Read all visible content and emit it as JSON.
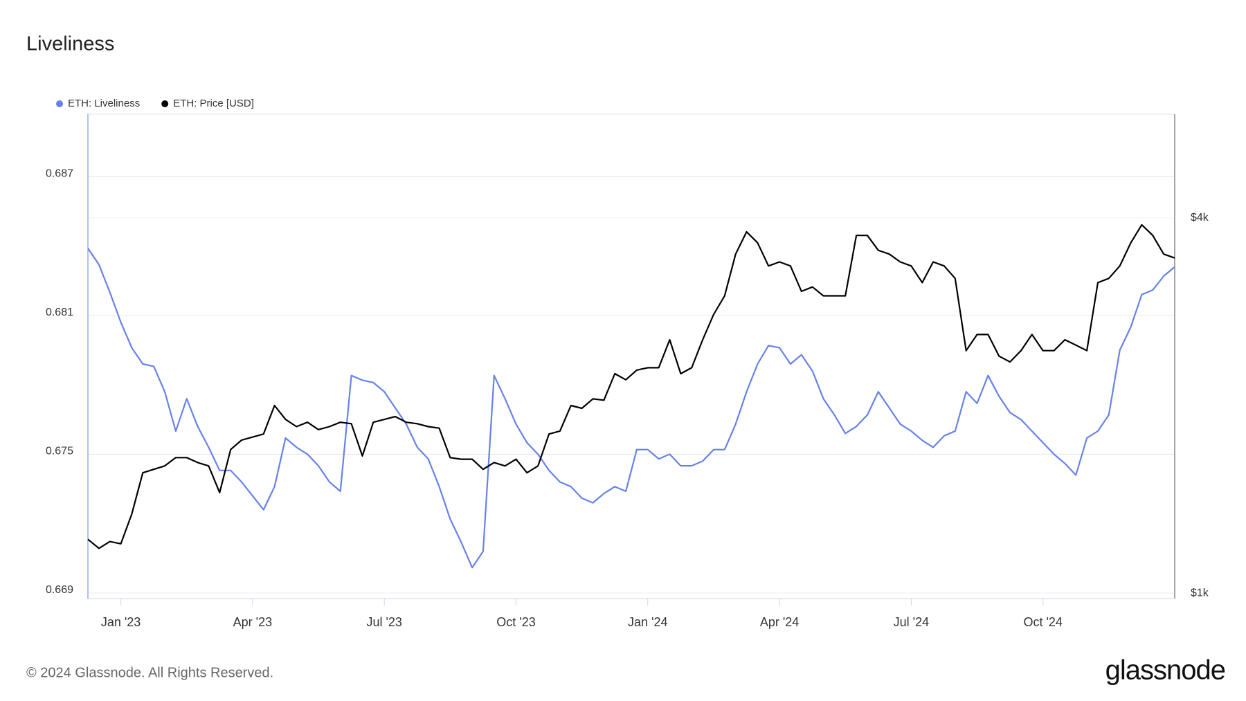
{
  "chart_data": {
    "type": "line",
    "title": "Liveliness",
    "x": [
      -0.75,
      -0.5,
      -0.25,
      0,
      0.25,
      0.5,
      0.75,
      1,
      1.25,
      1.5,
      1.75,
      2,
      2.25,
      2.5,
      2.75,
      3,
      3.25,
      3.5,
      3.75,
      4,
      4.25,
      4.5,
      4.75,
      5,
      5.25,
      5.5,
      5.75,
      6,
      6.25,
      6.5,
      6.75,
      7,
      7.25,
      7.5,
      7.75,
      8,
      8.25,
      8.5,
      8.75,
      9,
      9.25,
      9.5,
      9.75,
      10,
      10.25,
      10.5,
      10.75,
      11,
      11.25,
      11.5,
      11.75,
      12,
      12.25,
      12.5,
      12.75,
      13,
      13.25,
      13.5,
      13.75,
      14,
      14.25,
      14.5,
      14.75,
      15,
      15.25,
      15.5,
      15.75,
      16,
      16.25,
      16.5,
      16.75,
      17,
      17.25,
      17.5,
      17.75,
      18,
      18.25,
      18.5,
      18.75,
      19,
      19.25,
      19.5,
      19.75,
      20,
      20.25,
      20.5,
      20.75,
      21,
      21.25,
      21.5,
      21.75,
      22,
      22.25,
      22.5,
      22.75,
      23,
      23.25,
      23.5,
      23.75,
      24
    ],
    "xlim": [
      -0.75,
      24
    ],
    "xticks": [
      {
        "value": 0,
        "label": "Jan '23"
      },
      {
        "value": 3,
        "label": "Apr '23"
      },
      {
        "value": 6,
        "label": "Jul '23"
      },
      {
        "value": 9,
        "label": "Oct '23"
      },
      {
        "value": 12,
        "label": "Jan '24"
      },
      {
        "value": 15,
        "label": "Apr '24"
      },
      {
        "value": 18,
        "label": "Jul '24"
      },
      {
        "value": 21,
        "label": "Oct '24"
      }
    ],
    "ylim": [
      0.66876,
      0.6897
    ],
    "yticks": [
      0.669,
      0.675,
      0.681,
      0.687
    ],
    "y2lim": [
      980,
      5870
    ],
    "y2ticks": [
      {
        "value": 1000,
        "label": "$1k"
      },
      {
        "value": 4000,
        "label": "$4k"
      }
    ],
    "y2log": true,
    "grid": true,
    "legend": "top-left",
    "series": [
      {
        "name": "ETH: Liveliness",
        "color": "#6681e8",
        "values": [
          0.6839,
          0.6832,
          0.682,
          0.6807,
          0.6796,
          0.6789,
          0.6788,
          0.6777,
          0.676,
          0.6774,
          0.6762,
          0.6753,
          0.6743,
          0.6743,
          0.6738,
          0.6732,
          0.6726,
          0.6736,
          0.6757,
          0.6753,
          0.675,
          0.6745,
          0.6738,
          0.6734,
          0.6784,
          0.6782,
          0.6781,
          0.6777,
          0.677,
          0.6763,
          0.6753,
          0.6748,
          0.6736,
          0.6722,
          0.6712,
          0.6701,
          0.6708,
          0.6784,
          0.6774,
          0.6763,
          0.6755,
          0.675,
          0.6743,
          0.6738,
          0.6736,
          0.6731,
          0.6729,
          0.6733,
          0.6736,
          0.6734,
          0.6752,
          0.6752,
          0.6748,
          0.675,
          0.6745,
          0.6745,
          0.6747,
          0.6752,
          0.6752,
          0.6763,
          0.6777,
          0.6789,
          0.6797,
          0.6796,
          0.6789,
          0.6793,
          0.6786,
          0.6774,
          0.6767,
          0.6759,
          0.6762,
          0.6767,
          0.6777,
          0.677,
          0.6763,
          0.676,
          0.6756,
          0.6753,
          0.6758,
          0.676,
          0.6777,
          0.6772,
          0.6784,
          0.6775,
          0.6768,
          0.6765,
          0.676,
          0.6755,
          0.675,
          0.6746,
          0.6741,
          0.6757,
          0.676,
          0.6767,
          0.6795,
          0.6805,
          0.6819,
          0.6821,
          0.6827,
          0.6831
        ]
      },
      {
        "name": "ETH: Price [USD]",
        "color": "#000000",
        "axis": "y2",
        "values": [
          1220,
          1180,
          1210,
          1200,
          1340,
          1560,
          1580,
          1600,
          1650,
          1650,
          1620,
          1600,
          1450,
          1700,
          1760,
          1780,
          1800,
          2000,
          1900,
          1850,
          1880,
          1830,
          1850,
          1880,
          1870,
          1660,
          1880,
          1900,
          1920,
          1880,
          1870,
          1850,
          1840,
          1650,
          1640,
          1640,
          1580,
          1620,
          1600,
          1640,
          1560,
          1600,
          1800,
          1820,
          2000,
          1980,
          2050,
          2040,
          2250,
          2200,
          2280,
          2300,
          2300,
          2550,
          2250,
          2300,
          2550,
          2800,
          3000,
          3500,
          3800,
          3650,
          3350,
          3400,
          3350,
          3050,
          3100,
          3000,
          3000,
          3000,
          3750,
          3750,
          3550,
          3500,
          3400,
          3350,
          3150,
          3400,
          3350,
          3200,
          2450,
          2600,
          2600,
          2400,
          2350,
          2450,
          2600,
          2450,
          2450,
          2550,
          2500,
          2450,
          3150,
          3200,
          3350,
          3650,
          3900,
          3750,
          3500,
          3450
        ]
      }
    ]
  },
  "footer": "© 2024 Glassnode. All Rights Reserved.",
  "logo": "glassnode"
}
